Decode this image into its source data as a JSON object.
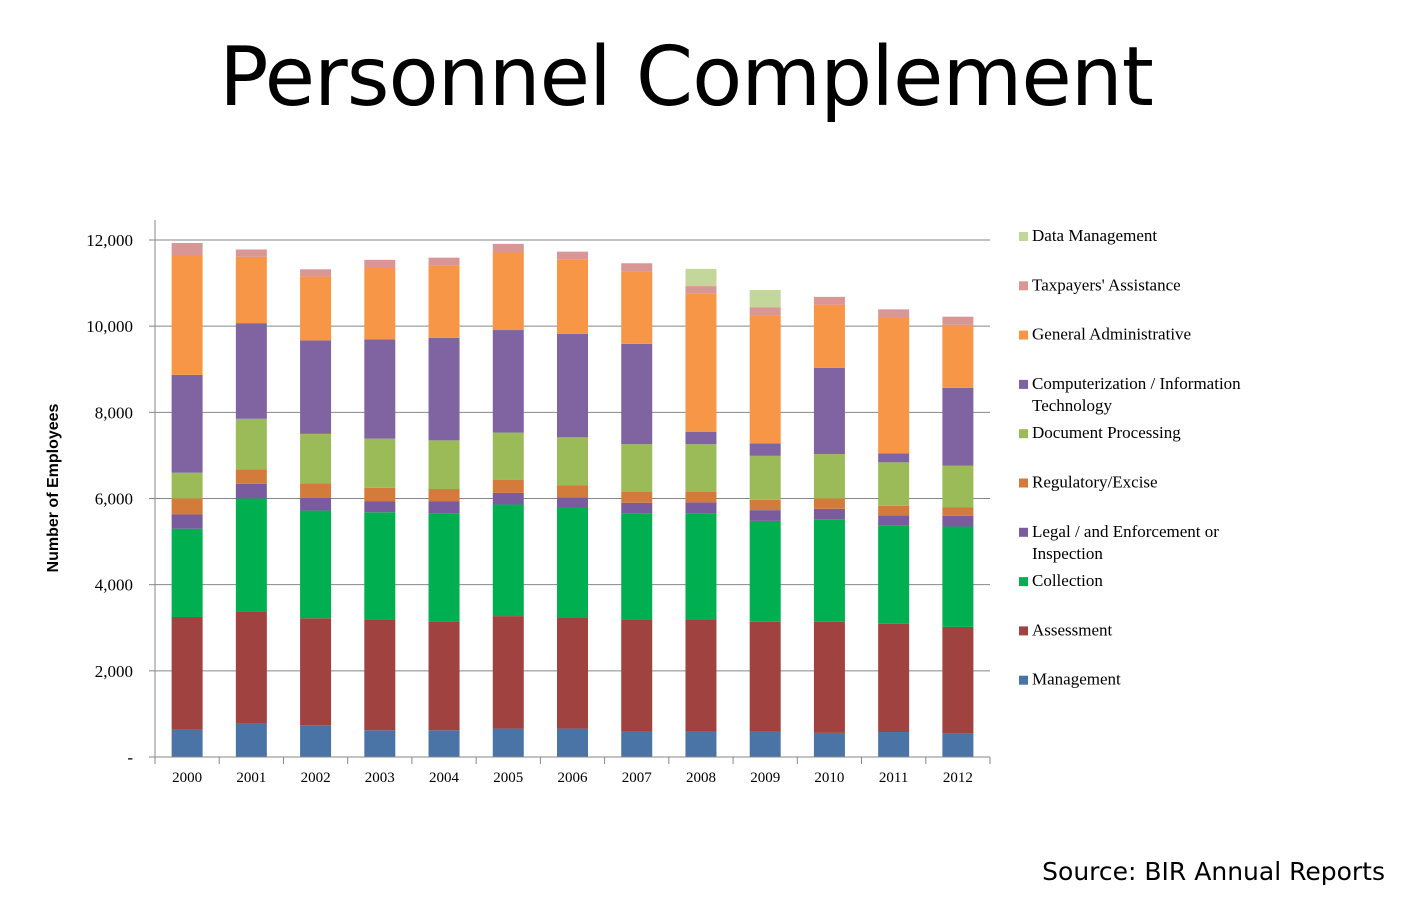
{
  "title": "Personnel Complement",
  "source": "Source: BIR Annual Reports",
  "chart_data": {
    "type": "bar",
    "stacked": true,
    "ylabel": "Number of Employees",
    "xlabel": "",
    "ylim": [
      0,
      12000
    ],
    "yticks": [
      0,
      2000,
      4000,
      6000,
      8000,
      10000,
      12000
    ],
    "ytick_labels": [
      "-",
      "2,000",
      "4,000",
      "6,000",
      "8,000",
      "10,000",
      "12,000"
    ],
    "grid": true,
    "legend_position": "right",
    "categories": [
      "2000",
      "2001",
      "2002",
      "2003",
      "2004",
      "2005",
      "2006",
      "2007",
      "2008",
      "2009",
      "2010",
      "2011",
      "2012"
    ],
    "series": [
      {
        "name": "Management",
        "color": "#4a74a6",
        "values": [
          630,
          770,
          740,
          620,
          620,
          660,
          660,
          590,
          590,
          590,
          560,
          580,
          540
        ]
      },
      {
        "name": "Assessment",
        "color": "#a04240",
        "values": [
          2620,
          2610,
          2480,
          2560,
          2530,
          2610,
          2580,
          2590,
          2610,
          2550,
          2580,
          2510,
          2480
        ]
      },
      {
        "name": "Collection",
        "color": "#00b050",
        "values": [
          2050,
          2620,
          2500,
          2500,
          2510,
          2590,
          2540,
          2480,
          2460,
          2340,
          2380,
          2280,
          2330
        ]
      },
      {
        "name": "Legal / and Enforcement or Inspection",
        "color": "#7a5c9e",
        "values": [
          330,
          340,
          300,
          260,
          280,
          270,
          250,
          240,
          250,
          250,
          240,
          240,
          250
        ]
      },
      {
        "name": "Regulatory/Excise",
        "color": "#d37b3b",
        "values": [
          370,
          340,
          330,
          310,
          280,
          300,
          280,
          260,
          250,
          240,
          240,
          220,
          200
        ]
      },
      {
        "name": "Document Processing",
        "color": "#9bbb59",
        "values": [
          600,
          1170,
          1150,
          1140,
          1130,
          1100,
          1110,
          1100,
          1100,
          1020,
          1030,
          1010,
          960
        ]
      },
      {
        "name": "Computerization / Information Technology",
        "color": "#8064a2",
        "values": [
          2270,
          2220,
          2170,
          2300,
          2380,
          2380,
          2400,
          2330,
          290,
          290,
          2000,
          210,
          1810
        ]
      },
      {
        "name": "General Administrative",
        "color": "#f79646",
        "values": [
          2770,
          1540,
          1480,
          1660,
          1680,
          1800,
          1720,
          1670,
          3200,
          2970,
          1470,
          3140,
          1460
        ]
      },
      {
        "name": "Taxpayers' Assistance",
        "color": "#d99694",
        "values": [
          290,
          170,
          170,
          190,
          180,
          200,
          190,
          200,
          180,
          190,
          180,
          200,
          190
        ]
      },
      {
        "name": "Data Management",
        "color": "#c4d79b",
        "values": [
          0,
          0,
          0,
          0,
          0,
          0,
          0,
          0,
          400,
          400,
          0,
          0,
          0
        ]
      }
    ]
  }
}
